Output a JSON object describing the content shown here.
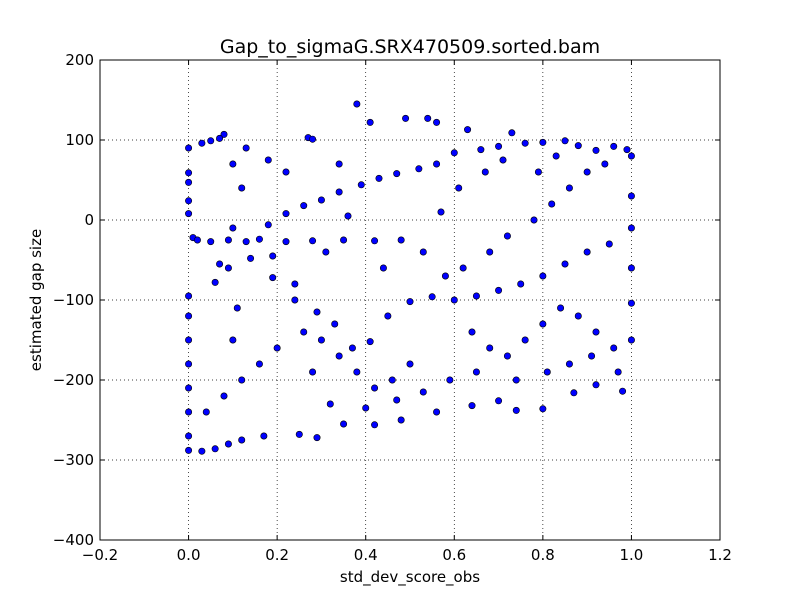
{
  "chart_data": {
    "type": "scatter",
    "title": "Gap_to_sigmaG.SRX470509.sorted.bam",
    "xlabel": "std_dev_score_obs",
    "ylabel": "estimated gap size",
    "xlim": [
      -0.2,
      1.2
    ],
    "ylim": [
      -400,
      200
    ],
    "xticks": [
      -0.2,
      0.0,
      0.2,
      0.4,
      0.6,
      0.8,
      1.0,
      1.2
    ],
    "yticks": [
      -400,
      -300,
      -200,
      -100,
      0,
      100,
      200
    ],
    "xtick_labels": [
      "−0.2",
      "0.0",
      "0.2",
      "0.4",
      "0.6",
      "0.8",
      "1.0",
      "1.2"
    ],
    "ytick_labels": [
      "−400",
      "−300",
      "−200",
      "−100",
      "0",
      "100",
      "200"
    ],
    "grid": true,
    "legend": "none",
    "marker_color": "#0000ff",
    "marker_edge": "#000000",
    "points": [
      [
        0.38,
        145
      ],
      [
        0.41,
        122
      ],
      [
        0.49,
        127
      ],
      [
        0.54,
        127
      ],
      [
        0.56,
        122
      ],
      [
        0.63,
        113
      ],
      [
        0.73,
        109
      ],
      [
        0.27,
        103
      ],
      [
        0.28,
        101
      ],
      [
        0.08,
        107
      ],
      [
        0.07,
        102
      ],
      [
        0.05,
        99
      ],
      [
        0.03,
        96
      ],
      [
        0.0,
        90
      ],
      [
        0.0,
        59
      ],
      [
        0.0,
        47
      ],
      [
        0.0,
        24
      ],
      [
        0.0,
        8
      ],
      [
        0.01,
        -22
      ],
      [
        0.02,
        -25
      ],
      [
        0.05,
        -27
      ],
      [
        0.09,
        -25
      ],
      [
        0.13,
        -27
      ],
      [
        0.16,
        -24
      ],
      [
        0.22,
        -27
      ],
      [
        0.28,
        -26
      ],
      [
        0.35,
        -25
      ],
      [
        0.42,
        -26
      ],
      [
        0.48,
        -25
      ],
      [
        0.07,
        -55
      ],
      [
        0.06,
        -78
      ],
      [
        0.0,
        -95
      ],
      [
        0.0,
        -120
      ],
      [
        0.0,
        -150
      ],
      [
        0.0,
        -180
      ],
      [
        0.0,
        -210
      ],
      [
        0.0,
        -240
      ],
      [
        0.0,
        -270
      ],
      [
        0.0,
        -288
      ],
      [
        0.03,
        -289
      ],
      [
        0.06,
        -286
      ],
      [
        0.09,
        -280
      ],
      [
        0.12,
        -275
      ],
      [
        0.17,
        -270
      ],
      [
        0.25,
        -268
      ],
      [
        0.29,
        -272
      ],
      [
        0.35,
        -255
      ],
      [
        0.42,
        -256
      ],
      [
        0.48,
        -250
      ],
      [
        0.56,
        -240
      ],
      [
        0.64,
        -232
      ],
      [
        0.7,
        -226
      ],
      [
        0.74,
        -238
      ],
      [
        0.8,
        -236
      ],
      [
        0.87,
        -216
      ],
      [
        0.92,
        -206
      ],
      [
        0.98,
        -214
      ],
      [
        1.0,
        -150
      ],
      [
        1.0,
        -104
      ],
      [
        1.0,
        -60
      ],
      [
        1.0,
        -10
      ],
      [
        1.0,
        30
      ],
      [
        1.0,
        80
      ],
      [
        0.99,
        88
      ],
      [
        0.96,
        92
      ],
      [
        0.92,
        87
      ],
      [
        0.88,
        93
      ],
      [
        0.85,
        99
      ],
      [
        0.8,
        97
      ],
      [
        0.76,
        96
      ],
      [
        0.7,
        92
      ],
      [
        0.66,
        88
      ],
      [
        0.6,
        84
      ],
      [
        0.56,
        70
      ],
      [
        0.52,
        64
      ],
      [
        0.47,
        58
      ],
      [
        0.43,
        52
      ],
      [
        0.39,
        44
      ],
      [
        0.34,
        35
      ],
      [
        0.3,
        25
      ],
      [
        0.26,
        18
      ],
      [
        0.22,
        8
      ],
      [
        0.18,
        -6
      ],
      [
        0.14,
        -48
      ],
      [
        0.19,
        -72
      ],
      [
        0.24,
        -80
      ],
      [
        0.29,
        -115
      ],
      [
        0.33,
        -130
      ],
      [
        0.37,
        -160
      ],
      [
        0.41,
        -152
      ],
      [
        0.45,
        -120
      ],
      [
        0.5,
        -102
      ],
      [
        0.55,
        -96
      ],
      [
        0.6,
        -100
      ],
      [
        0.65,
        -95
      ],
      [
        0.7,
        -88
      ],
      [
        0.75,
        -80
      ],
      [
        0.8,
        -70
      ],
      [
        0.85,
        -55
      ],
      [
        0.9,
        -40
      ],
      [
        0.95,
        -30
      ],
      [
        0.58,
        -70
      ],
      [
        0.62,
        -60
      ],
      [
        0.68,
        -40
      ],
      [
        0.72,
        -20
      ],
      [
        0.78,
        0
      ],
      [
        0.82,
        20
      ],
      [
        0.86,
        40
      ],
      [
        0.9,
        60
      ],
      [
        0.94,
        70
      ],
      [
        0.64,
        -140
      ],
      [
        0.68,
        -160
      ],
      [
        0.72,
        -170
      ],
      [
        0.76,
        -150
      ],
      [
        0.8,
        -130
      ],
      [
        0.84,
        -110
      ],
      [
        0.88,
        -120
      ],
      [
        0.92,
        -140
      ],
      [
        0.96,
        -160
      ],
      [
        0.5,
        -180
      ],
      [
        0.46,
        -200
      ],
      [
        0.42,
        -210
      ],
      [
        0.38,
        -190
      ],
      [
        0.34,
        -170
      ],
      [
        0.3,
        -150
      ],
      [
        0.26,
        -140
      ],
      [
        0.2,
        -160
      ],
      [
        0.16,
        -180
      ],
      [
        0.12,
        -200
      ],
      [
        0.08,
        -220
      ],
      [
        0.04,
        -240
      ],
      [
        0.1,
        -150
      ],
      [
        0.11,
        -110
      ],
      [
        0.09,
        -60
      ],
      [
        0.1,
        -10
      ],
      [
        0.12,
        40
      ],
      [
        0.1,
        70
      ],
      [
        0.13,
        90
      ],
      [
        0.18,
        75
      ],
      [
        0.22,
        60
      ],
      [
        0.34,
        70
      ],
      [
        0.36,
        5
      ],
      [
        0.31,
        -40
      ],
      [
        0.44,
        -60
      ],
      [
        0.53,
        -40
      ],
      [
        0.57,
        10
      ],
      [
        0.61,
        40
      ],
      [
        0.67,
        60
      ],
      [
        0.71,
        75
      ],
      [
        0.79,
        60
      ],
      [
        0.83,
        80
      ],
      [
        0.19,
        -45
      ],
      [
        0.24,
        -100
      ],
      [
        0.28,
        -190
      ],
      [
        0.32,
        -230
      ],
      [
        0.4,
        -235
      ],
      [
        0.47,
        -225
      ],
      [
        0.53,
        -215
      ],
      [
        0.59,
        -200
      ],
      [
        0.65,
        -190
      ],
      [
        0.74,
        -200
      ],
      [
        0.81,
        -190
      ],
      [
        0.86,
        -180
      ],
      [
        0.91,
        -170
      ],
      [
        0.97,
        -190
      ]
    ]
  }
}
